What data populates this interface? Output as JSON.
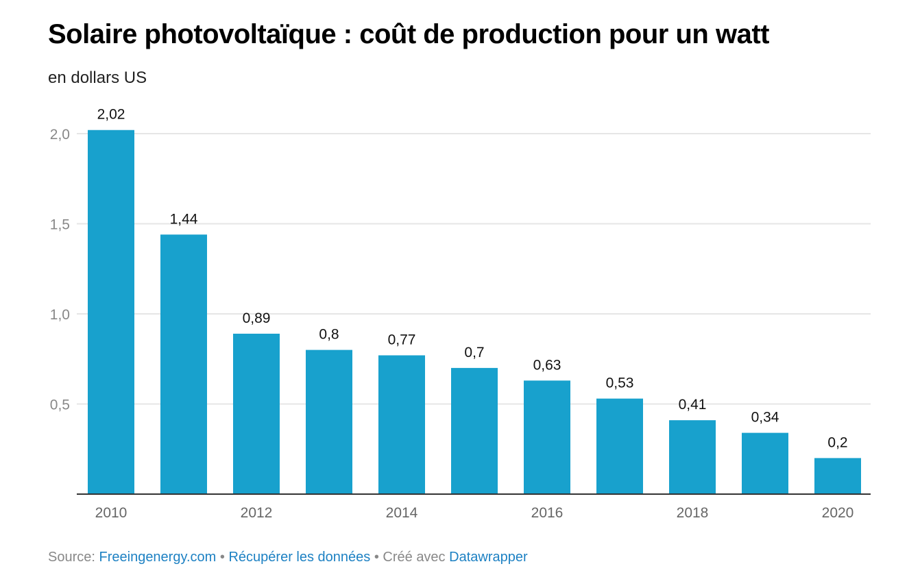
{
  "title": "Solaire photovoltaïque : coût de production pour un watt",
  "subtitle": "en dollars US",
  "footer": {
    "source_label": "Source:",
    "source_link": "Freeingenergy.com",
    "sep1": "•",
    "data_link": "Récupérer les données",
    "sep2": "•",
    "created_label": "Créé avec",
    "tool_link": "Datawrapper"
  },
  "colors": {
    "bar": "#18a1cd",
    "grid": "#e6e6e6",
    "axis": "#333333",
    "tick": "#888888"
  },
  "chart_data": {
    "type": "bar",
    "title": "Solaire photovoltaïque : coût de production pour un watt",
    "ylabel": "en dollars US",
    "categories": [
      "2010",
      "2011",
      "2012",
      "2013",
      "2014",
      "2015",
      "2016",
      "2017",
      "2018",
      "2019",
      "2020"
    ],
    "values": [
      2.02,
      1.44,
      0.89,
      0.8,
      0.77,
      0.7,
      0.63,
      0.53,
      0.41,
      0.34,
      0.2
    ],
    "value_labels": [
      "2,02",
      "1,44",
      "0,89",
      "0,8",
      "0,77",
      "0,7",
      "0,63",
      "0,53",
      "0,41",
      "0,34",
      "0,2"
    ],
    "x_tick_labels": [
      "2010",
      "",
      "2012",
      "",
      "2014",
      "",
      "2016",
      "",
      "2018",
      "",
      "2020"
    ],
    "y_ticks": [
      0.5,
      1.0,
      1.5,
      2.0
    ],
    "y_tick_labels": [
      "0,5",
      "1,0",
      "1,5",
      "2,0"
    ],
    "ylim": [
      0,
      2.0
    ],
    "grid": true
  }
}
